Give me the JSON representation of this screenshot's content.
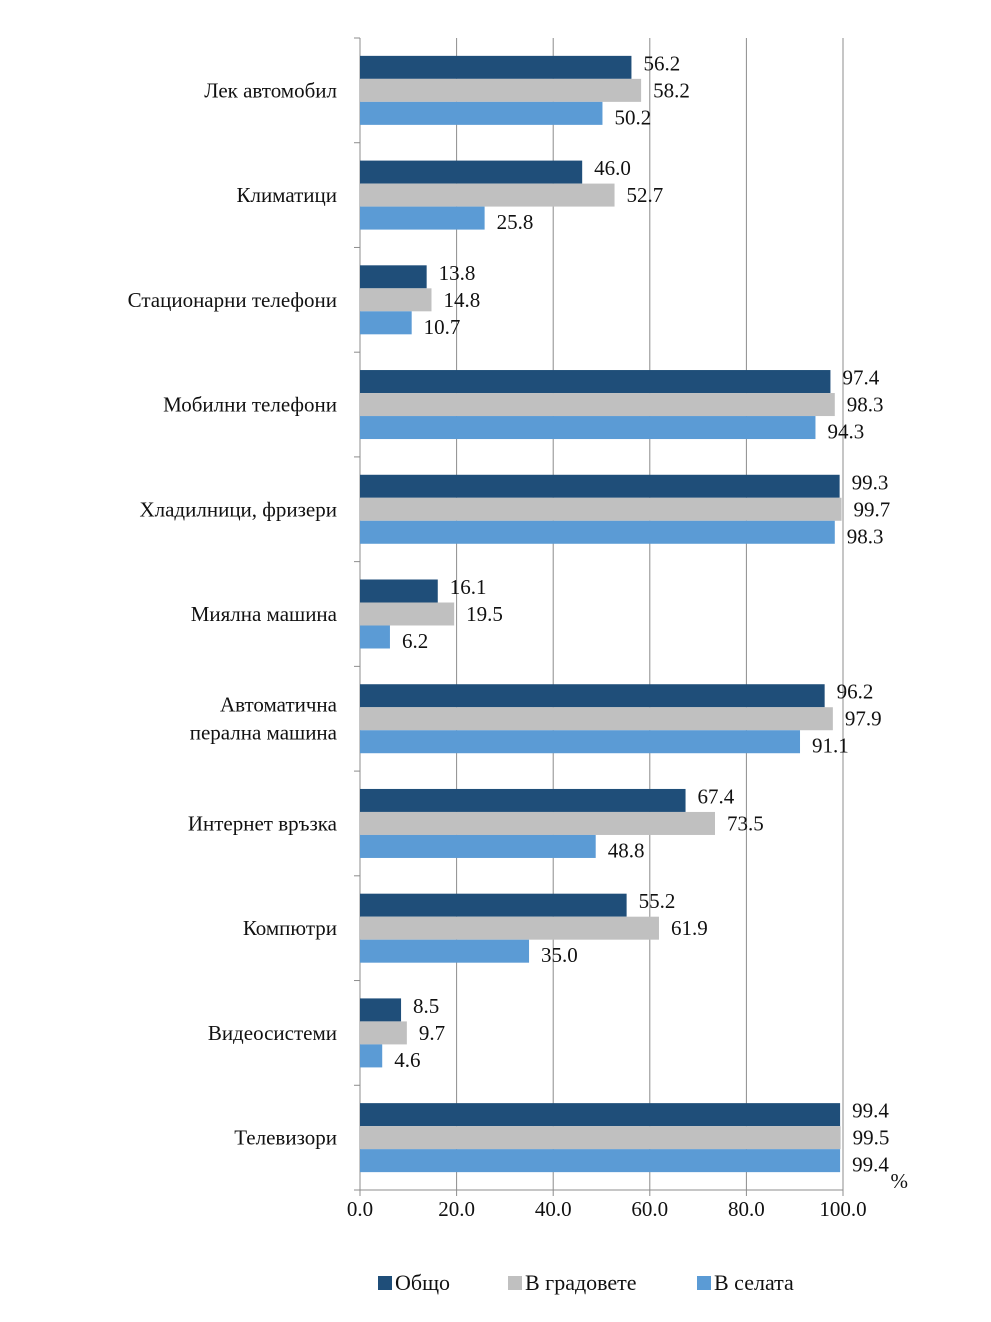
{
  "chart_data": {
    "type": "bar",
    "orientation": "horizontal",
    "categories": [
      [
        "Лек автомобил"
      ],
      [
        "Климатици"
      ],
      [
        "Стационарни телефони"
      ],
      [
        "Мобилни телефони"
      ],
      [
        "Хладилници,  фризери"
      ],
      [
        "Миялна машина"
      ],
      [
        "Автоматична",
        "перална машина"
      ],
      [
        "Интернет връзка"
      ],
      [
        "Компютри"
      ],
      [
        "Видеосистеми"
      ],
      [
        "Телевизори"
      ]
    ],
    "series": [
      {
        "name": "Общо",
        "color": "#1f4e79",
        "values": [
          56.2,
          46.0,
          13.8,
          97.4,
          99.3,
          16.1,
          96.2,
          67.4,
          55.2,
          8.5,
          99.4
        ]
      },
      {
        "name": "В градовете",
        "color": "#c0c0c0",
        "values": [
          58.2,
          52.7,
          14.8,
          98.3,
          99.7,
          19.5,
          97.9,
          73.5,
          61.9,
          9.7,
          99.5
        ]
      },
      {
        "name": "В селата",
        "color": "#5b9bd5",
        "values": [
          50.2,
          25.8,
          10.7,
          94.3,
          98.3,
          6.2,
          91.1,
          48.8,
          35.0,
          4.6,
          99.4
        ]
      }
    ],
    "xlim": [
      0,
      100
    ],
    "xticks": [
      "0.0",
      "20.0",
      "40.0",
      "60.0",
      "80.0",
      "100.0"
    ],
    "xunit": "%",
    "grid": "vertical",
    "legend": "bottom"
  }
}
